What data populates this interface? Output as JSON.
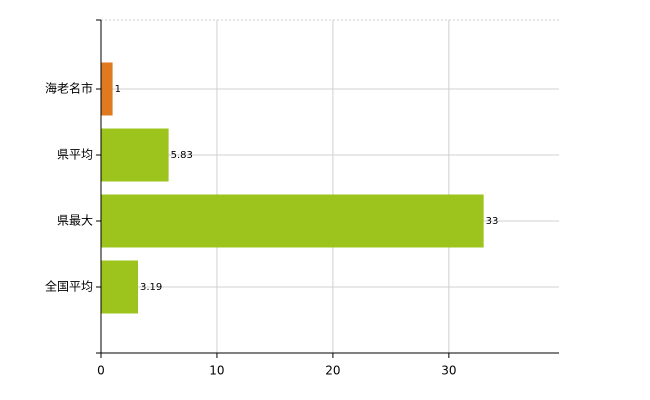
{
  "chart_data": {
    "type": "barh",
    "categories": [
      "海老名市",
      "県平均",
      "県最大",
      "全国平均"
    ],
    "values": [
      1,
      5.83,
      33,
      3.19
    ],
    "colors": [
      "#e07a1f",
      "#9cc41c",
      "#9cc41c",
      "#9cc41c"
    ],
    "xlim": [
      0,
      39.5
    ],
    "xticks": [
      0,
      10,
      20,
      30
    ],
    "grid": true
  }
}
